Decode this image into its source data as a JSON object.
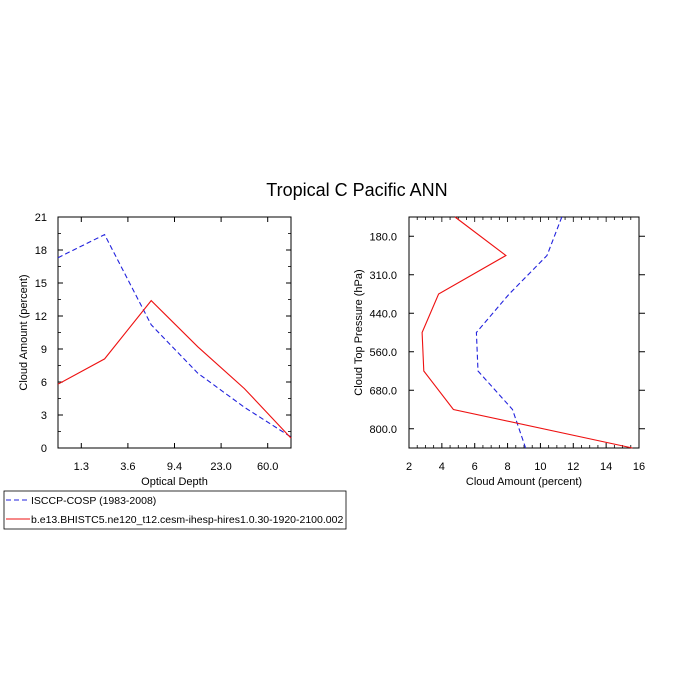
{
  "title": "Tropical C Pacific ANN",
  "colors": {
    "obs": "#2222dd",
    "model": "#ee1111"
  },
  "chart_data": [
    {
      "type": "line",
      "xlabel": "Optical Depth",
      "ylabel": "Cloud Amount (percent)",
      "x_tick_labels": [
        "1.3",
        "3.6",
        "9.4",
        "23.0",
        "60.0"
      ],
      "ylim": [
        0,
        21
      ],
      "yticks": [
        0,
        3,
        6,
        9,
        12,
        15,
        18,
        21
      ],
      "series": [
        {
          "name": "ISCCP-COSP (1983-2008)",
          "style": "dashed",
          "color": "#2222dd",
          "values": [
            17.3,
            19.4,
            11.2,
            6.8,
            3.7,
            1.0
          ]
        },
        {
          "name": "b.e13.BHISTC5.ne120_t12.cesm-ihesp-hires1.0.30-1920-2100.002",
          "style": "solid",
          "color": "#ee1111",
          "values": [
            5.8,
            8.1,
            13.4,
            9.2,
            5.4,
            0.9
          ]
        }
      ]
    },
    {
      "type": "line",
      "xlabel": "Cloud Amount (percent)",
      "ylabel": "Cloud Top Pressure (hPa)",
      "xlim": [
        2,
        16
      ],
      "xticks": [
        2,
        4,
        6,
        8,
        10,
        12,
        14,
        16
      ],
      "y_tick_labels": [
        "180.0",
        "310.0",
        "440.0",
        "560.0",
        "680.0",
        "800.0"
      ],
      "series": [
        {
          "name": "ISCCP-COSP (1983-2008)",
          "style": "dashed",
          "color": "#2222dd",
          "values": [
            11.3,
            10.4,
            8.1,
            6.1,
            6.2,
            8.3,
            9.1
          ]
        },
        {
          "name": "b.e13.BHISTC5.ne120_t12.cesm-ihesp-hires1.0.30-1920-2100.002",
          "style": "solid",
          "color": "#ee1111",
          "values": [
            4.8,
            7.9,
            3.8,
            2.8,
            2.9,
            4.7,
            15.6
          ]
        }
      ]
    }
  ],
  "legend": {
    "items": [
      {
        "label": "ISCCP-COSP (1983-2008)",
        "style": "dashed",
        "color": "#2222dd"
      },
      {
        "label": "b.e13.BHISTC5.ne120_t12.cesm-ihesp-hires1.0.30-1920-2100.002",
        "style": "solid",
        "color": "#ee1111"
      }
    ]
  }
}
